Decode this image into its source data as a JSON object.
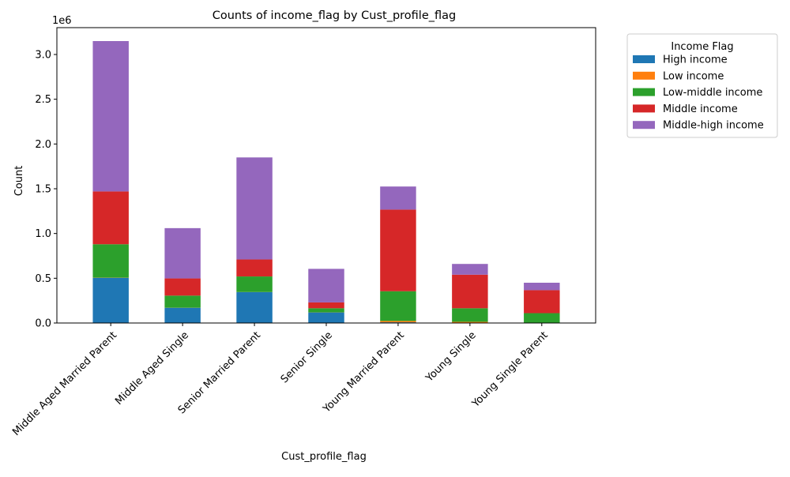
{
  "chart_data": {
    "type": "bar",
    "stacked": true,
    "title": "Counts of income_flag by Cust_profile_flag",
    "xlabel": "Cust_profile_flag",
    "ylabel": "Count",
    "y_offset_label": "1e6",
    "ylim": [
      0,
      3300000
    ],
    "yticks": [
      0,
      500000,
      1000000,
      1500000,
      2000000,
      2500000,
      3000000
    ],
    "ytick_labels": [
      "0.0",
      "0.5",
      "1.0",
      "1.5",
      "2.0",
      "2.5",
      "3.0"
    ],
    "categories": [
      "Middle Aged Married Parent",
      "Middle Aged Single",
      "Senior Married Parent",
      "Senior Single",
      "Young Married Parent",
      "Young Single",
      "Young Single Parent"
    ],
    "series": [
      {
        "name": "High income",
        "color": "#1f77b4",
        "values": [
          505000,
          170000,
          345000,
          118000,
          8000,
          3000,
          1000
        ]
      },
      {
        "name": "Low income",
        "color": "#ff7f0e",
        "values": [
          2000,
          1000,
          1000,
          1000,
          15000,
          10000,
          3000
        ]
      },
      {
        "name": "Low-middle income",
        "color": "#2ca02c",
        "values": [
          373000,
          135000,
          174000,
          46000,
          332000,
          152000,
          106000
        ]
      },
      {
        "name": "Middle income",
        "color": "#d62728",
        "values": [
          590000,
          192000,
          190000,
          65000,
          912000,
          375000,
          257000
        ]
      },
      {
        "name": "Middle-high income",
        "color": "#9467bd",
        "values": [
          1680000,
          562000,
          1140000,
          375000,
          258000,
          120000,
          83000
        ]
      }
    ],
    "legend": {
      "title": "Income Flag",
      "placement": "outside-right-top"
    },
    "grid": false
  }
}
